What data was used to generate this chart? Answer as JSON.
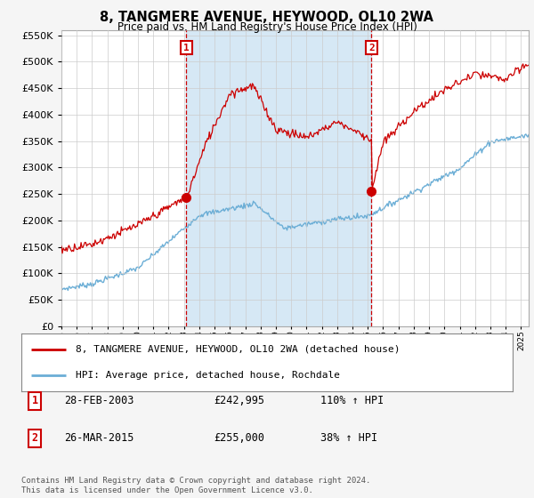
{
  "title": "8, TANGMERE AVENUE, HEYWOOD, OL10 2WA",
  "subtitle": "Price paid vs. HM Land Registry's House Price Index (HPI)",
  "ytick_values": [
    0,
    50000,
    100000,
    150000,
    200000,
    250000,
    300000,
    350000,
    400000,
    450000,
    500000,
    550000
  ],
  "ylim": [
    0,
    560000
  ],
  "hpi_color": "#6baed6",
  "price_color": "#cc0000",
  "dashed_color": "#cc0000",
  "bg_color": "#f5f5f5",
  "plot_bg": "#ffffff",
  "fill_color": "#d6e8f5",
  "legend_label1": "8, TANGMERE AVENUE, HEYWOOD, OL10 2WA (detached house)",
  "legend_label2": "HPI: Average price, detached house, Rochdale",
  "sale1_label": "1",
  "sale1_date": "28-FEB-2003",
  "sale1_price": "£242,995",
  "sale1_hpi": "110% ↑ HPI",
  "sale1_year": 2003.16,
  "sale1_value": 242995,
  "sale2_label": "2",
  "sale2_date": "26-MAR-2015",
  "sale2_price": "£255,000",
  "sale2_hpi": "38% ↑ HPI",
  "sale2_year": 2015.24,
  "sale2_value": 255000,
  "footer": "Contains HM Land Registry data © Crown copyright and database right 2024.\nThis data is licensed under the Open Government Licence v3.0.",
  "xmin": 1995,
  "xmax": 2025.5
}
